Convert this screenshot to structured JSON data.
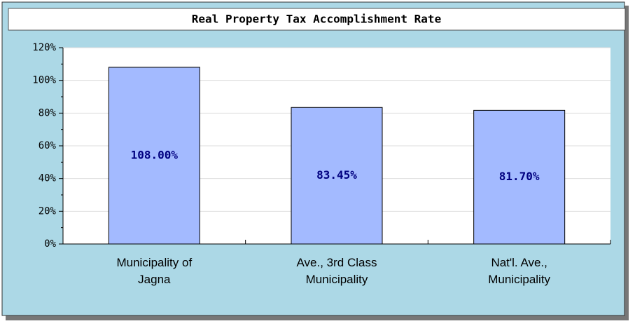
{
  "chart_data": {
    "type": "bar",
    "title": "Real Property Tax Accomplishment Rate",
    "categories": [
      "Municipality of\nJagna",
      "Ave., 3rd Class\nMunicipality",
      "Nat'l. Ave.,\nMunicipality"
    ],
    "values": [
      108,
      83.45,
      81.7
    ],
    "value_labels": [
      "108.00%",
      "83.45%",
      "81.70%"
    ],
    "color": "#a3baff",
    "ylim": [
      0,
      120
    ],
    "yticks": [
      {
        "value": 0,
        "label": "0%"
      },
      {
        "value": 20,
        "label": "20%"
      },
      {
        "value": 40,
        "label": "40%"
      },
      {
        "value": 60,
        "label": "60%"
      },
      {
        "value": 80,
        "label": "80%"
      },
      {
        "value": 100,
        "label": "100%"
      },
      {
        "value": 120,
        "label": "120%"
      }
    ],
    "grid": true
  }
}
